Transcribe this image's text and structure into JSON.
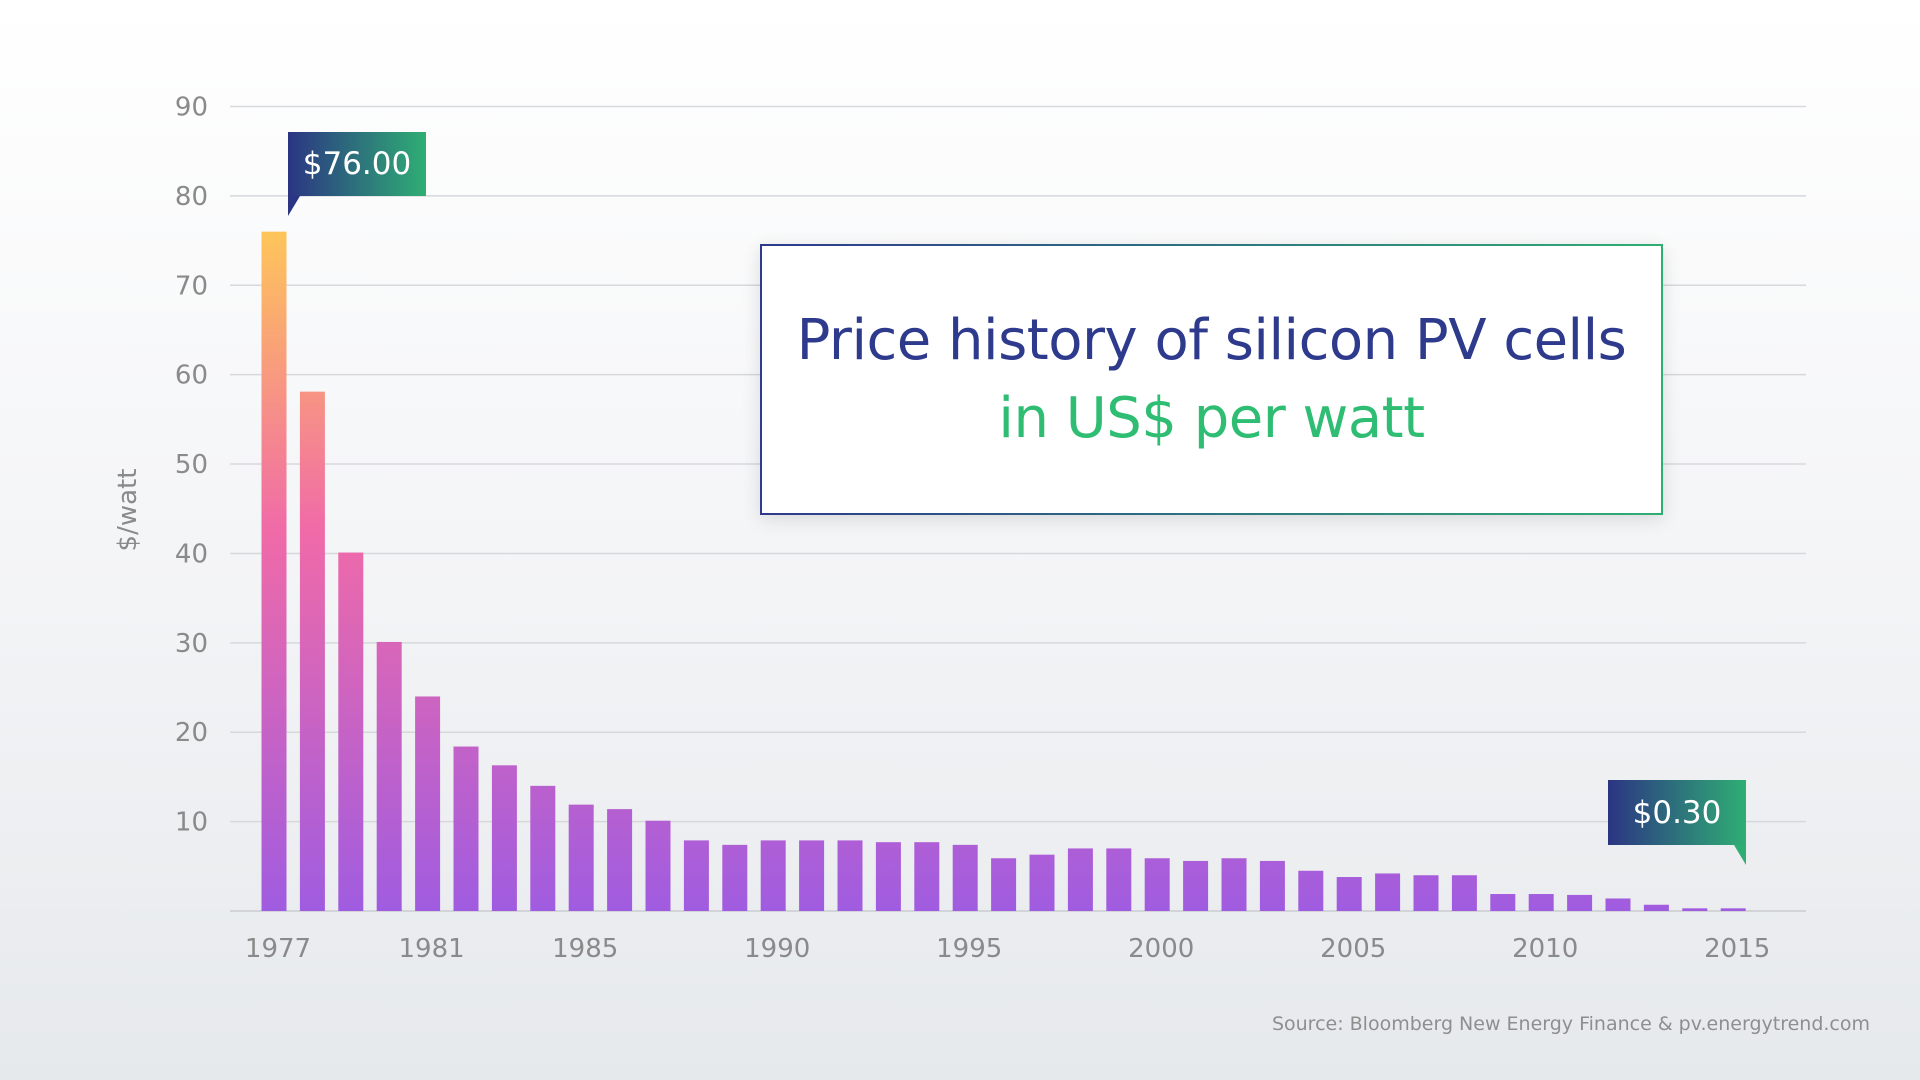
{
  "chart_data": {
    "type": "bar",
    "title": "Price history of silicon PV cells",
    "subtitle": "in US$ per watt",
    "xlabel": "",
    "ylabel": "$/watt",
    "ylim": [
      0,
      90
    ],
    "yticks": [
      10,
      20,
      30,
      40,
      50,
      60,
      70,
      80,
      90
    ],
    "xtick_labels": [
      "1977",
      "1981",
      "1985",
      "1990",
      "1995",
      "2000",
      "2005",
      "2010",
      "2015"
    ],
    "grid": true,
    "categories": [
      1977,
      1978,
      1979,
      1980,
      1981,
      1982,
      1983,
      1984,
      1985,
      1986,
      1987,
      1988,
      1989,
      1990,
      1991,
      1992,
      1993,
      1994,
      1995,
      1996,
      1997,
      1998,
      1999,
      2000,
      2001,
      2002,
      2003,
      2004,
      2005,
      2006,
      2007,
      2008,
      2009,
      2010,
      2011,
      2012,
      2013,
      2014,
      2015
    ],
    "values": [
      76.0,
      58.1,
      40.1,
      30.1,
      24.0,
      18.4,
      16.3,
      14.0,
      11.9,
      11.4,
      10.1,
      7.9,
      7.4,
      7.9,
      7.9,
      7.9,
      7.7,
      7.7,
      7.4,
      5.9,
      6.3,
      7.0,
      7.0,
      5.9,
      5.6,
      5.9,
      5.6,
      4.5,
      3.8,
      4.2,
      4.0,
      4.0,
      1.9,
      1.9,
      1.8,
      1.4,
      0.7,
      0.3,
      0.3
    ],
    "annotations": [
      {
        "year": 1977,
        "text": "$76.00"
      },
      {
        "year": 2015,
        "text": "$0.30"
      }
    ],
    "colors": {
      "bar_top": "#ffc857",
      "bar_mid": "#f06aa8",
      "bar_bottom": "#a05ce0",
      "callout_from": "#2b3583",
      "callout_to": "#2fae74",
      "title": "#2e3a8c",
      "subtitle": "#2ebd72"
    }
  },
  "source": "Source: Bloomberg New Energy Finance & pv.energytrend.com"
}
